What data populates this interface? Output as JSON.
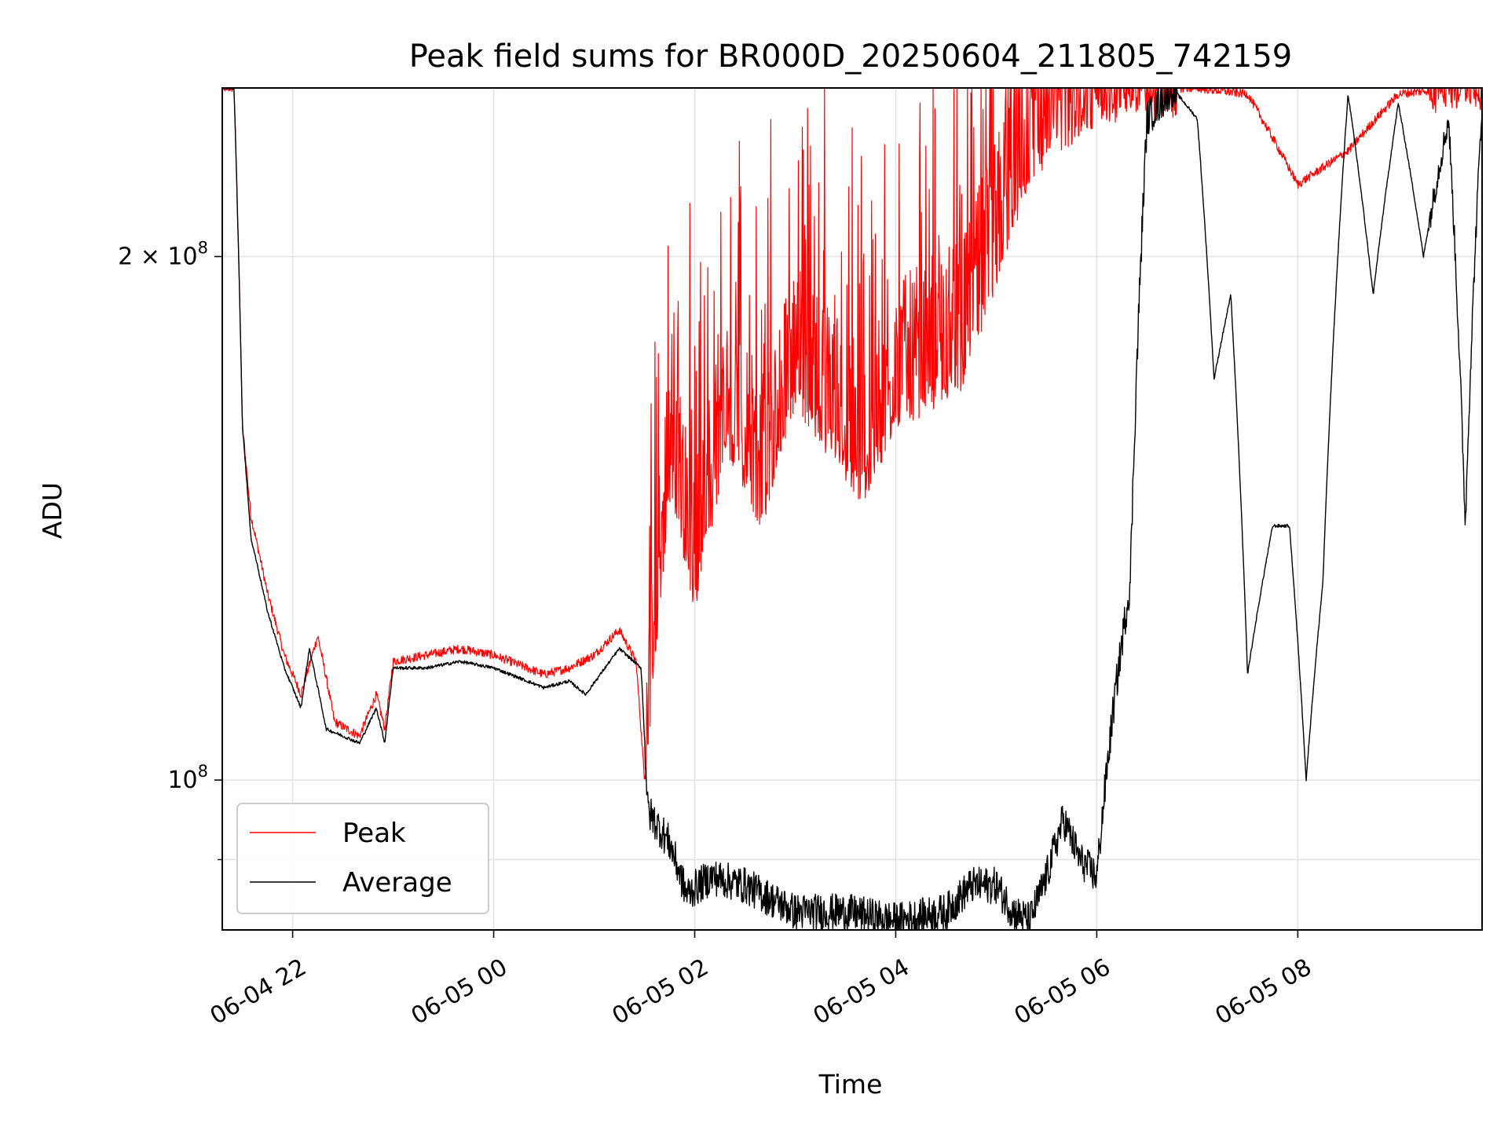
{
  "chart_data": {
    "type": "line",
    "title": "Peak field sums for BR000D_20250604_211805_742159",
    "xlabel": "Time",
    "ylabel": "ADU",
    "x_unit": "hours",
    "x_ticks": [
      {
        "label": "06-04 22",
        "value": "2025-06-04 22:00"
      },
      {
        "label": "06-05 00",
        "value": "2025-06-05 00:00"
      },
      {
        "label": "06-05 02",
        "value": "2025-06-05 02:00"
      },
      {
        "label": "06-05 04",
        "value": "2025-06-05 04:00"
      },
      {
        "label": "06-05 06",
        "value": "2025-06-05 06:00"
      },
      {
        "label": "06-05 08",
        "value": "2025-06-05 08:00"
      }
    ],
    "xlim": [
      "2025-06-04 21:18",
      "2025-06-05 09:50"
    ],
    "yscale": "log",
    "ylim": [
      82000000,
      250000000
    ],
    "y_ticks": [
      {
        "label_base": "2 × 10",
        "label_exp": "8",
        "value": 200000000
      },
      {
        "label_base": "10",
        "label_exp": "8",
        "value": 100000000
      }
    ],
    "y_minor_ticks": [
      90000000
    ],
    "grid": true,
    "legend_position": "lower-left",
    "series": [
      {
        "name": "Peak",
        "color": "#ff0000",
        "points": [
          [
            "2025-06-04 21:18",
            250000000
          ],
          [
            "2025-06-04 21:25",
            250000000
          ],
          [
            "2025-06-04 21:30",
            160000000
          ],
          [
            "2025-06-04 21:35",
            142000000
          ],
          [
            "2025-06-04 21:45",
            128000000
          ],
          [
            "2025-06-04 21:55",
            118000000
          ],
          [
            "2025-06-04 22:05",
            112000000
          ],
          [
            "2025-06-04 22:15",
            121000000
          ],
          [
            "2025-06-04 22:25",
            108000000
          ],
          [
            "2025-06-04 22:40",
            106000000
          ],
          [
            "2025-06-04 22:50",
            112000000
          ],
          [
            "2025-06-04 22:55",
            107000000
          ],
          [
            "2025-06-04 23:00",
            117000000
          ],
          [
            "2025-06-04 23:20",
            118000000
          ],
          [
            "2025-06-04 23:40",
            119000000
          ],
          [
            "2025-06-05 00:00",
            118000000
          ],
          [
            "2025-06-05 00:30",
            115000000
          ],
          [
            "2025-06-05 00:45",
            116000000
          ],
          [
            "2025-06-05 01:00",
            118000000
          ],
          [
            "2025-06-05 01:15",
            122000000
          ],
          [
            "2025-06-05 01:25",
            117000000
          ],
          [
            "2025-06-05 01:30",
            100000000
          ],
          [
            "2025-06-05 01:45",
            150000000
          ],
          [
            "2025-06-05 02:00",
            130000000
          ],
          [
            "2025-06-05 02:20",
            160000000
          ],
          [
            "2025-06-05 02:40",
            145000000
          ],
          [
            "2025-06-05 03:00",
            170000000
          ],
          [
            "2025-06-05 03:20",
            160000000
          ],
          [
            "2025-06-05 03:40",
            150000000
          ],
          [
            "2025-06-05 04:00",
            165000000
          ],
          [
            "2025-06-05 04:20",
            170000000
          ],
          [
            "2025-06-05 04:40",
            175000000
          ],
          [
            "2025-06-05 05:00",
            200000000
          ],
          [
            "2025-06-05 05:20",
            230000000
          ],
          [
            "2025-06-05 05:40",
            240000000
          ],
          [
            "2025-06-05 06:00",
            248000000
          ],
          [
            "2025-06-05 06:30",
            250000000
          ],
          [
            "2025-06-05 07:00",
            250000000
          ],
          [
            "2025-06-05 07:30",
            248000000
          ],
          [
            "2025-06-05 08:00",
            220000000
          ],
          [
            "2025-06-05 08:30",
            230000000
          ],
          [
            "2025-06-05 09:00",
            248000000
          ],
          [
            "2025-06-05 09:30",
            250000000
          ],
          [
            "2025-06-05 09:50",
            250000000
          ]
        ]
      },
      {
        "name": "Average",
        "color": "#000000",
        "points": [
          [
            "2025-06-04 21:18",
            250000000
          ],
          [
            "2025-06-04 21:25",
            250000000
          ],
          [
            "2025-06-04 21:30",
            160000000
          ],
          [
            "2025-06-04 21:35",
            138000000
          ],
          [
            "2025-06-04 21:45",
            125000000
          ],
          [
            "2025-06-04 21:55",
            116000000
          ],
          [
            "2025-06-04 22:05",
            110000000
          ],
          [
            "2025-06-04 22:10",
            119000000
          ],
          [
            "2025-06-04 22:20",
            107000000
          ],
          [
            "2025-06-04 22:40",
            105000000
          ],
          [
            "2025-06-04 22:50",
            110000000
          ],
          [
            "2025-06-04 22:55",
            105000000
          ],
          [
            "2025-06-04 23:00",
            116000000
          ],
          [
            "2025-06-04 23:20",
            116000000
          ],
          [
            "2025-06-04 23:40",
            117000000
          ],
          [
            "2025-06-05 00:00",
            116000000
          ],
          [
            "2025-06-05 00:30",
            113000000
          ],
          [
            "2025-06-05 00:45",
            114000000
          ],
          [
            "2025-06-05 00:55",
            112000000
          ],
          [
            "2025-06-05 01:15",
            119000000
          ],
          [
            "2025-06-05 01:28",
            116000000
          ],
          [
            "2025-06-05 01:32",
            96000000
          ],
          [
            "2025-06-05 01:45",
            92000000
          ],
          [
            "2025-06-05 01:55",
            86000000
          ],
          [
            "2025-06-05 02:10",
            88000000
          ],
          [
            "2025-06-05 02:30",
            87000000
          ],
          [
            "2025-06-05 03:00",
            84000000
          ],
          [
            "2025-06-05 03:30",
            84000000
          ],
          [
            "2025-06-05 04:00",
            83000000
          ],
          [
            "2025-06-05 04:30",
            84000000
          ],
          [
            "2025-06-05 04:45",
            87000000
          ],
          [
            "2025-06-05 05:00",
            87000000
          ],
          [
            "2025-06-05 05:10",
            84000000
          ],
          [
            "2025-06-05 05:20",
            83000000
          ],
          [
            "2025-06-05 05:30",
            88000000
          ],
          [
            "2025-06-05 05:40",
            95000000
          ],
          [
            "2025-06-05 05:50",
            90000000
          ],
          [
            "2025-06-05 06:00",
            88000000
          ],
          [
            "2025-06-05 06:10",
            110000000
          ],
          [
            "2025-06-05 06:20",
            130000000
          ],
          [
            "2025-06-05 06:30",
            240000000
          ],
          [
            "2025-06-05 06:45",
            250000000
          ],
          [
            "2025-06-05 07:00",
            240000000
          ],
          [
            "2025-06-05 07:10",
            170000000
          ],
          [
            "2025-06-05 07:20",
            190000000
          ],
          [
            "2025-06-05 07:30",
            115000000
          ],
          [
            "2025-06-05 07:45",
            140000000
          ],
          [
            "2025-06-05 07:55",
            140000000
          ],
          [
            "2025-06-05 08:05",
            100000000
          ],
          [
            "2025-06-05 08:15",
            130000000
          ],
          [
            "2025-06-05 08:30",
            248000000
          ],
          [
            "2025-06-05 08:45",
            190000000
          ],
          [
            "2025-06-05 09:00",
            245000000
          ],
          [
            "2025-06-05 09:15",
            200000000
          ],
          [
            "2025-06-05 09:30",
            240000000
          ],
          [
            "2025-06-05 09:40",
            140000000
          ],
          [
            "2025-06-05 09:50",
            245000000
          ]
        ]
      }
    ]
  }
}
